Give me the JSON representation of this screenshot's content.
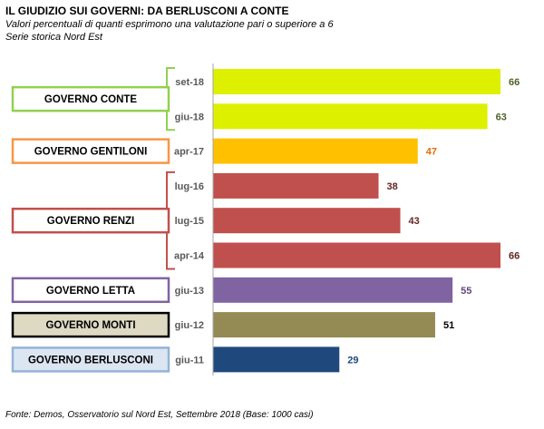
{
  "header": {
    "title": "IL GIUDIZIO  SUI GOVERNI: DA BERLUSCONI A CONTE",
    "subtitle": "Valori percentuali di quanti esprimono una valutazione pari o superiore a 6",
    "series_note": "Serie storica Nord Est"
  },
  "footer": {
    "source": "Fonte: Demos, Osservatorio sul Nord Est, Settembre  2018 (Base: 1000 casi)"
  },
  "chart_data": {
    "type": "bar",
    "orientation": "horizontal",
    "categories": [
      "set-18",
      "giu-18",
      "apr-17",
      "lug-16",
      "lug-15",
      "apr-14",
      "giu-13",
      "giu-12",
      "giu-11"
    ],
    "values": [
      66,
      63,
      47,
      38,
      43,
      66,
      55,
      51,
      29
    ],
    "bar_colors": [
      "#ddf000",
      "#ddf000",
      "#ffc000",
      "#c0504d",
      "#c0504d",
      "#c0504d",
      "#8064a2",
      "#948a54",
      "#1f497d"
    ],
    "label_colors": [
      "#4f6228",
      "#4f6228",
      "#e46c0a",
      "#632523",
      "#632523",
      "#632523",
      "#5f497a",
      "#000000",
      "#1f497d"
    ],
    "xlim": [
      0,
      70
    ],
    "grid": false,
    "groups": [
      {
        "name": "GOVERNO CONTE",
        "rows": [
          0,
          1
        ],
        "border": "#92d050",
        "fill": "#ffffff"
      },
      {
        "name": "GOVERNO GENTILONI",
        "rows": [
          2
        ],
        "border": "#f79646",
        "fill": "#ffffff"
      },
      {
        "name": "GOVERNO RENZI",
        "rows": [
          3,
          4,
          5
        ],
        "border": "#c0504d",
        "fill": "#ffffff"
      },
      {
        "name": "GOVERNO LETTA",
        "rows": [
          6
        ],
        "border": "#8064a2",
        "fill": "#ffffff"
      },
      {
        "name": "GOVERNO MONTI",
        "rows": [
          7
        ],
        "border": "#000000",
        "fill": "#ddd9c3"
      },
      {
        "name": "GOVERNO BERLUSCONI",
        "rows": [
          8
        ],
        "border": "#95b3d7",
        "fill": "#dce6f2"
      }
    ]
  }
}
